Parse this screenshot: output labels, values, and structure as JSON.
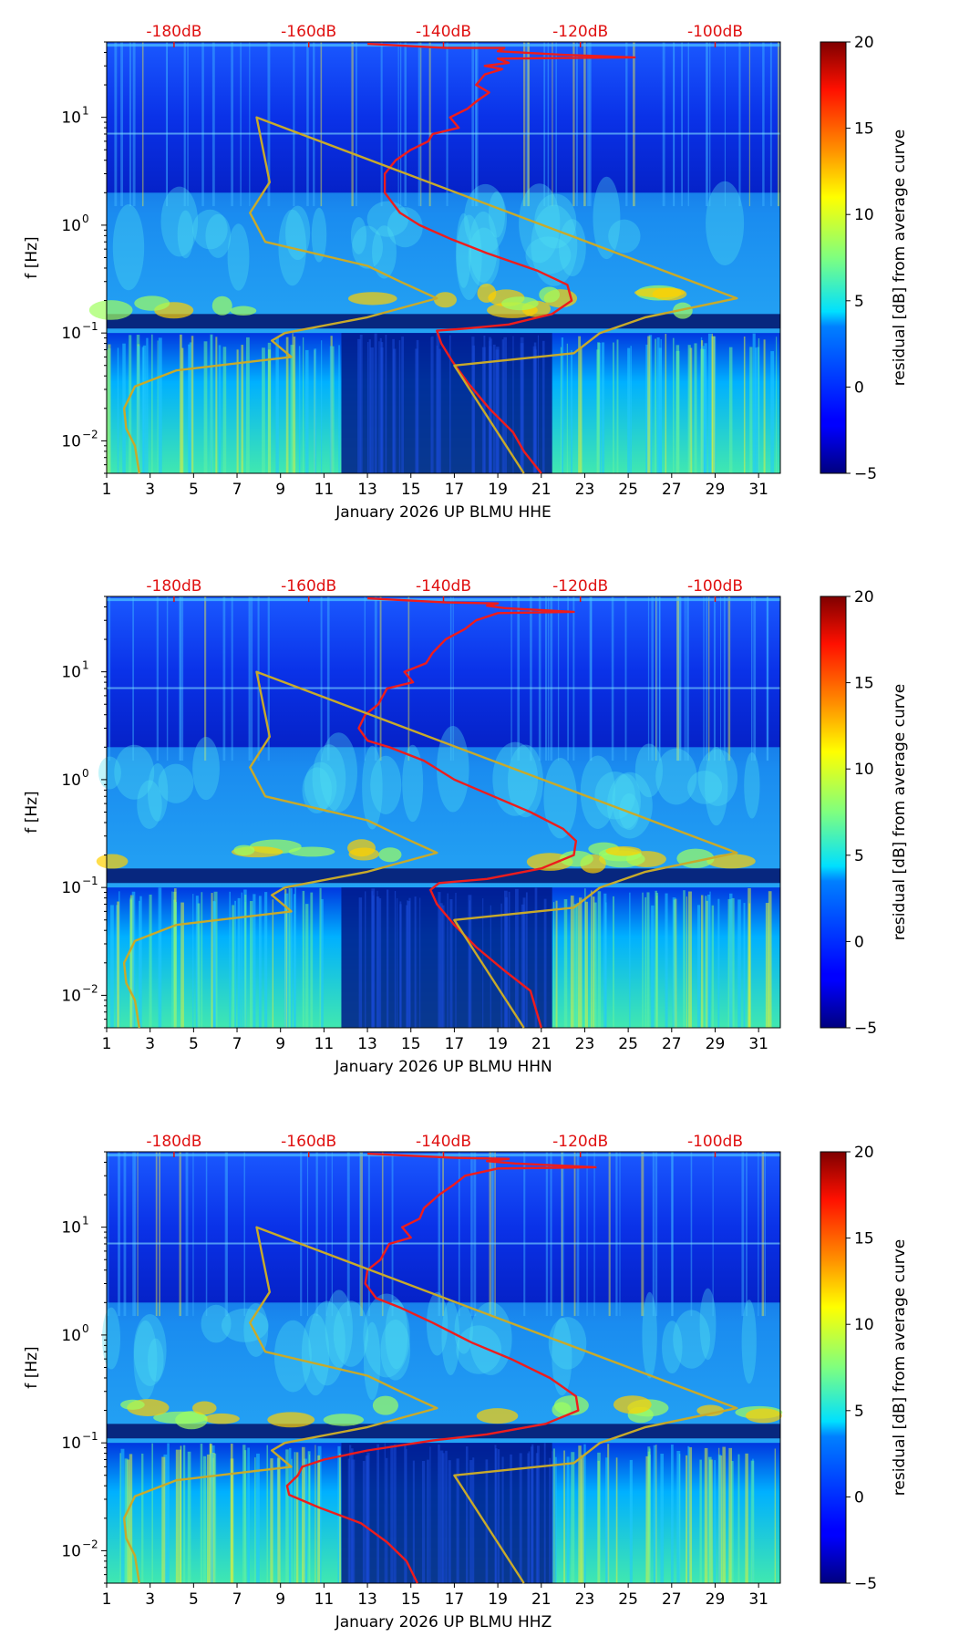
{
  "colors": {
    "noise_line": "#ee1c1c",
    "model_line": "#c8aa2a",
    "db_tick_label": "#e01010",
    "axis": "#000000",
    "colormap": "jet"
  },
  "chart_data": [
    {
      "type": "heatmap",
      "channel": "HHE",
      "xlabel": "January 2026 UP BLMU  HHE",
      "ylabel": "f [Hz]",
      "x_range": [
        1,
        32
      ],
      "x_ticks": [
        "1",
        "3",
        "5",
        "7",
        "9",
        "11",
        "13",
        "15",
        "17",
        "19",
        "21",
        "23",
        "25",
        "27",
        "29",
        "31"
      ],
      "y_range_hz": [
        0.005,
        50
      ],
      "y_tick_labels": [
        {
          "value": 10,
          "label": "10",
          "exp": "1"
        },
        {
          "value": 1,
          "label": "10",
          "exp": "0"
        },
        {
          "value": 0.1,
          "label": "10",
          "exp": "−1"
        },
        {
          "value": 0.01,
          "label": "10",
          "exp": "−2"
        }
      ],
      "top_axis": {
        "labels": [
          "-180dB",
          "-160dB",
          "-140dB",
          "-120dB",
          "-100dB"
        ],
        "x_positions": [
          4.1,
          10.3,
          16.5,
          22.8,
          29.0
        ]
      },
      "colorbar": {
        "label": "residual [dB] from average curve",
        "min": -5,
        "max": 20,
        "ticks": [
          "20",
          "15",
          "10",
          "5",
          "0",
          "−5"
        ]
      },
      "series": [
        {
          "name": "noise-level",
          "color": "#ee1c1c",
          "points": [
            [
              13.0,
              48
            ],
            [
              16.6,
              44
            ],
            [
              19.3,
              44
            ],
            [
              19.0,
              41
            ],
            [
              22.0,
              38
            ],
            [
              25.3,
              36
            ],
            [
              19.0,
              35
            ],
            [
              19.5,
              32
            ],
            [
              18.4,
              30
            ],
            [
              19.2,
              28
            ],
            [
              18.4,
              25
            ],
            [
              18.0,
              20
            ],
            [
              18.6,
              17
            ],
            [
              18.0,
              14
            ],
            [
              17.6,
              12
            ],
            [
              16.8,
              10
            ],
            [
              17.2,
              8
            ],
            [
              16.0,
              7
            ],
            [
              15.8,
              6
            ],
            [
              15.0,
              5
            ],
            [
              14.3,
              4
            ],
            [
              13.8,
              3
            ],
            [
              13.8,
              2
            ],
            [
              14.5,
              1.3
            ],
            [
              15.4,
              1.0
            ],
            [
              16.8,
              0.75
            ],
            [
              18.5,
              0.55
            ],
            [
              20.8,
              0.38
            ],
            [
              22.2,
              0.28
            ],
            [
              22.4,
              0.2
            ],
            [
              21.5,
              0.15
            ],
            [
              19.5,
              0.12
            ],
            [
              17.5,
              0.11
            ],
            [
              16.2,
              0.105
            ],
            [
              16.4,
              0.08
            ],
            [
              16.9,
              0.055
            ],
            [
              17.6,
              0.035
            ],
            [
              18.6,
              0.02
            ],
            [
              19.7,
              0.012
            ],
            [
              20.2,
              0.008
            ],
            [
              21.0,
              0.005
            ]
          ]
        },
        {
          "name": "model-curve",
          "color": "#c8aa2a",
          "points": [
            [
              2.5,
              0.005
            ],
            [
              2.3,
              0.009
            ],
            [
              1.9,
              0.013
            ],
            [
              1.8,
              0.02
            ],
            [
              2.3,
              0.032
            ],
            [
              4.2,
              0.045
            ],
            [
              9.5,
              0.06
            ],
            [
              8.6,
              0.085
            ],
            [
              9.2,
              0.1
            ],
            [
              13.0,
              0.14
            ],
            [
              16.2,
              0.21
            ],
            [
              14.5,
              0.3
            ],
            [
              13.0,
              0.42
            ],
            [
              8.3,
              0.7
            ],
            [
              7.6,
              1.3
            ],
            [
              8.5,
              2.5
            ],
            [
              7.9,
              10
            ],
            [
              30.0,
              0.21
            ],
            [
              29.5,
              0.2
            ],
            [
              25.8,
              0.14
            ],
            [
              23.7,
              0.1
            ],
            [
              22.5,
              0.065
            ],
            [
              17.0,
              0.05
            ],
            [
              20.2,
              0.005
            ]
          ]
        }
      ]
    },
    {
      "type": "heatmap",
      "channel": "HHN",
      "xlabel": "January 2026 UP BLMU  HHN",
      "ylabel": "f [Hz]",
      "x_range": [
        1,
        32
      ],
      "x_ticks": [
        "1",
        "3",
        "5",
        "7",
        "9",
        "11",
        "13",
        "15",
        "17",
        "19",
        "21",
        "23",
        "25",
        "27",
        "29",
        "31"
      ],
      "y_range_hz": [
        0.005,
        50
      ],
      "y_tick_labels": [
        {
          "value": 10,
          "label": "10",
          "exp": "1"
        },
        {
          "value": 1,
          "label": "10",
          "exp": "0"
        },
        {
          "value": 0.1,
          "label": "10",
          "exp": "−1"
        },
        {
          "value": 0.01,
          "label": "10",
          "exp": "−2"
        }
      ],
      "top_axis": {
        "labels": [
          "-180dB",
          "-160dB",
          "-140dB",
          "-120dB",
          "-100dB"
        ],
        "x_positions": [
          4.1,
          10.3,
          16.5,
          22.8,
          29.0
        ]
      },
      "colorbar": {
        "label": "residual [dB] from average curve",
        "min": -5,
        "max": 20,
        "ticks": [
          "20",
          "15",
          "10",
          "5",
          "0",
          "−5"
        ]
      },
      "series": [
        {
          "name": "noise-level",
          "color": "#ee1c1c",
          "points": [
            [
              13.0,
              48
            ],
            [
              16.6,
              44
            ],
            [
              19.0,
              43
            ],
            [
              18.5,
              41
            ],
            [
              19.3,
              39
            ],
            [
              22.5,
              36
            ],
            [
              19.0,
              35
            ],
            [
              18.0,
              30
            ],
            [
              17.5,
              25
            ],
            [
              16.6,
              20
            ],
            [
              16.0,
              15
            ],
            [
              15.7,
              12
            ],
            [
              14.7,
              10
            ],
            [
              15.1,
              8
            ],
            [
              13.9,
              7
            ],
            [
              13.5,
              5
            ],
            [
              12.9,
              4
            ],
            [
              12.6,
              3
            ],
            [
              13.0,
              2.3
            ],
            [
              14.0,
              2.0
            ],
            [
              15.6,
              1.5
            ],
            [
              17.0,
              1.0
            ],
            [
              18.8,
              0.7
            ],
            [
              20.5,
              0.5
            ],
            [
              22.0,
              0.35
            ],
            [
              22.6,
              0.27
            ],
            [
              22.5,
              0.2
            ],
            [
              21.0,
              0.15
            ],
            [
              18.5,
              0.12
            ],
            [
              16.3,
              0.11
            ],
            [
              15.9,
              0.095
            ],
            [
              16.2,
              0.07
            ],
            [
              17.0,
              0.045
            ],
            [
              18.0,
              0.028
            ],
            [
              19.3,
              0.017
            ],
            [
              20.5,
              0.011
            ],
            [
              21.0,
              0.005
            ]
          ]
        },
        {
          "name": "model-curve",
          "color": "#c8aa2a",
          "points": [
            [
              2.5,
              0.005
            ],
            [
              2.3,
              0.009
            ],
            [
              1.9,
              0.013
            ],
            [
              1.8,
              0.02
            ],
            [
              2.3,
              0.032
            ],
            [
              4.2,
              0.045
            ],
            [
              9.5,
              0.06
            ],
            [
              8.6,
              0.085
            ],
            [
              9.2,
              0.1
            ],
            [
              13.0,
              0.14
            ],
            [
              16.2,
              0.21
            ],
            [
              14.5,
              0.3
            ],
            [
              13.0,
              0.42
            ],
            [
              8.3,
              0.7
            ],
            [
              7.6,
              1.3
            ],
            [
              8.5,
              2.5
            ],
            [
              7.9,
              10
            ],
            [
              30.0,
              0.21
            ],
            [
              29.5,
              0.2
            ],
            [
              25.8,
              0.14
            ],
            [
              23.7,
              0.1
            ],
            [
              22.5,
              0.065
            ],
            [
              17.0,
              0.05
            ],
            [
              20.2,
              0.005
            ]
          ]
        }
      ]
    },
    {
      "type": "heatmap",
      "channel": "HHZ",
      "xlabel": "January 2026 UP BLMU  HHZ",
      "ylabel": "f [Hz]",
      "x_range": [
        1,
        32
      ],
      "x_ticks": [
        "1",
        "3",
        "5",
        "7",
        "9",
        "11",
        "13",
        "15",
        "17",
        "19",
        "21",
        "23",
        "25",
        "27",
        "29",
        "31"
      ],
      "y_range_hz": [
        0.005,
        50
      ],
      "y_tick_labels": [
        {
          "value": 10,
          "label": "10",
          "exp": "1"
        },
        {
          "value": 1,
          "label": "10",
          "exp": "0"
        },
        {
          "value": 0.1,
          "label": "10",
          "exp": "−1"
        },
        {
          "value": 0.01,
          "label": "10",
          "exp": "−2"
        }
      ],
      "top_axis": {
        "labels": [
          "-180dB",
          "-160dB",
          "-140dB",
          "-120dB",
          "-100dB"
        ],
        "x_positions": [
          4.1,
          10.3,
          16.5,
          22.8,
          29.0
        ]
      },
      "colorbar": {
        "label": "residual [dB] from average curve",
        "min": -5,
        "max": 20,
        "ticks": [
          "20",
          "15",
          "10",
          "5",
          "0",
          "−5"
        ]
      },
      "series": [
        {
          "name": "noise-level",
          "color": "#ee1c1c",
          "points": [
            [
              13.0,
              48
            ],
            [
              17.0,
              44
            ],
            [
              19.5,
              43
            ],
            [
              18.5,
              41
            ],
            [
              19.8,
              39
            ],
            [
              23.5,
              36
            ],
            [
              19.0,
              35
            ],
            [
              17.5,
              30
            ],
            [
              17.0,
              25
            ],
            [
              16.3,
              20
            ],
            [
              15.6,
              15
            ],
            [
              15.4,
              12
            ],
            [
              14.6,
              10
            ],
            [
              15.0,
              8
            ],
            [
              14.0,
              7
            ],
            [
              13.6,
              5
            ],
            [
              13.0,
              4
            ],
            [
              12.9,
              3
            ],
            [
              13.4,
              2.2
            ],
            [
              14.5,
              1.8
            ],
            [
              16.0,
              1.3
            ],
            [
              17.8,
              0.85
            ],
            [
              19.6,
              0.6
            ],
            [
              21.4,
              0.4
            ],
            [
              22.6,
              0.27
            ],
            [
              22.7,
              0.2
            ],
            [
              21.2,
              0.15
            ],
            [
              18.5,
              0.12
            ],
            [
              16.0,
              0.105
            ],
            [
              13.0,
              0.085
            ],
            [
              11.0,
              0.07
            ],
            [
              10.0,
              0.06
            ],
            [
              9.8,
              0.05
            ],
            [
              9.3,
              0.04
            ],
            [
              9.4,
              0.033
            ],
            [
              10.8,
              0.025
            ],
            [
              12.7,
              0.018
            ],
            [
              13.9,
              0.012
            ],
            [
              14.8,
              0.008
            ],
            [
              15.3,
              0.005
            ]
          ]
        },
        {
          "name": "model-curve",
          "color": "#c8aa2a",
          "points": [
            [
              2.5,
              0.005
            ],
            [
              2.3,
              0.009
            ],
            [
              1.9,
              0.013
            ],
            [
              1.8,
              0.02
            ],
            [
              2.3,
              0.032
            ],
            [
              4.2,
              0.045
            ],
            [
              9.5,
              0.06
            ],
            [
              8.6,
              0.085
            ],
            [
              9.2,
              0.1
            ],
            [
              13.0,
              0.14
            ],
            [
              16.2,
              0.21
            ],
            [
              14.5,
              0.3
            ],
            [
              13.0,
              0.42
            ],
            [
              8.3,
              0.7
            ],
            [
              7.6,
              1.3
            ],
            [
              8.5,
              2.5
            ],
            [
              7.9,
              10
            ],
            [
              30.0,
              0.21
            ],
            [
              29.5,
              0.2
            ],
            [
              25.8,
              0.14
            ],
            [
              23.7,
              0.1
            ],
            [
              22.5,
              0.065
            ],
            [
              17.0,
              0.05
            ],
            [
              20.2,
              0.005
            ]
          ]
        }
      ]
    }
  ]
}
